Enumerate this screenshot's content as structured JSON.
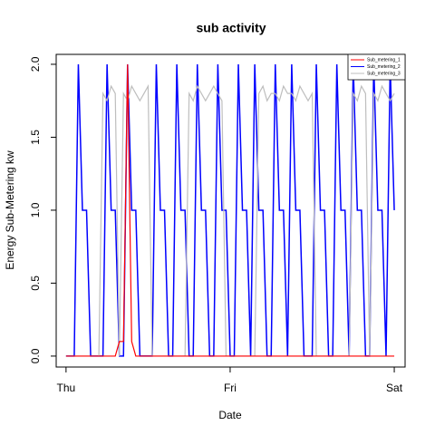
{
  "chart_data": {
    "type": "line",
    "title": "sub activity",
    "xlabel": "Date",
    "ylabel": "Energy Sub-Metering kw",
    "x": [
      0,
      0.025,
      0.05,
      0.075,
      0.1,
      0.125,
      0.15,
      0.175,
      0.2,
      0.225,
      0.25,
      0.275,
      0.3,
      0.325,
      0.35,
      0.375,
      0.4,
      0.425,
      0.45,
      0.475,
      0.5,
      0.525,
      0.55,
      0.575,
      0.6,
      0.625,
      0.65,
      0.675,
      0.7,
      0.725,
      0.75,
      0.775,
      0.8,
      0.825,
      0.85,
      0.875,
      0.9,
      0.925,
      0.95,
      0.975,
      1,
      1.025,
      1.05,
      1.075,
      1.1,
      1.125,
      1.15,
      1.175,
      1.2,
      1.225,
      1.25,
      1.275,
      1.3,
      1.325,
      1.35,
      1.375,
      1.4,
      1.425,
      1.45,
      1.475,
      1.5,
      1.525,
      1.55,
      1.575,
      1.6,
      1.625,
      1.65,
      1.675,
      1.7,
      1.725,
      1.75,
      1.775,
      1.8,
      1.825,
      1.85,
      1.875,
      1.9,
      1.925,
      1.95,
      1.975,
      2
    ],
    "series": [
      {
        "name": "Sub_metering_1",
        "color": "#ff0000",
        "values": [
          0,
          0,
          0,
          0,
          0,
          0,
          0,
          0,
          0,
          0,
          0,
          0,
          0,
          0.1,
          0.1,
          2,
          0.1,
          0,
          0,
          0,
          0,
          0,
          0,
          0,
          0,
          0,
          0,
          0,
          0,
          0,
          0,
          0,
          0,
          0,
          0,
          0,
          0,
          0,
          0,
          0,
          0,
          0,
          0,
          0,
          0,
          0,
          0,
          0,
          0,
          0,
          0,
          0,
          0,
          0,
          0,
          0,
          0,
          0,
          0,
          0,
          0,
          0,
          0,
          0,
          0,
          0,
          0,
          0,
          0,
          0,
          0,
          0,
          0,
          0,
          0,
          0,
          0,
          0,
          0,
          0,
          0
        ]
      },
      {
        "name": "Sub_metering_2",
        "color": "#0000ff",
        "values": [
          0,
          0,
          0,
          2,
          1,
          1,
          0,
          0,
          0,
          0,
          2,
          1,
          1,
          0,
          0,
          2,
          1,
          1,
          0,
          0,
          0,
          0,
          2,
          1,
          1,
          0,
          0,
          2,
          1,
          1,
          0,
          0,
          2,
          1,
          1,
          0,
          0,
          2,
          1,
          1,
          0,
          0,
          2,
          1,
          1,
          0,
          2,
          1,
          1,
          0,
          0,
          2,
          1,
          1,
          0,
          2,
          1,
          1,
          0,
          0,
          0,
          2,
          1,
          1,
          0,
          0,
          2,
          1,
          1,
          0,
          2,
          1,
          1,
          0,
          0,
          2,
          1,
          1,
          0,
          2,
          1
        ]
      },
      {
        "name": "Sub_metering_3",
        "color": "#bebebe",
        "values": [
          0,
          0,
          0,
          0,
          0,
          0,
          0,
          0,
          0,
          1.8,
          1.75,
          1.85,
          1.8,
          0,
          1.8,
          1.75,
          1.85,
          1.8,
          1.75,
          1.8,
          1.85,
          0,
          0,
          0,
          0,
          0,
          0,
          0,
          0,
          0,
          1.8,
          1.75,
          1.85,
          1.8,
          1.75,
          1.8,
          1.85,
          1.8,
          1.75,
          0,
          0,
          0,
          0,
          0,
          0,
          0,
          0,
          1.8,
          1.85,
          1.75,
          1.8,
          1.8,
          1.75,
          1.85,
          1.8,
          1.8,
          1.75,
          1.85,
          1.8,
          1.75,
          1.8,
          0,
          0,
          0,
          0,
          0,
          0,
          0,
          0,
          0,
          1.8,
          1.75,
          1.85,
          1.8,
          0,
          1.8,
          1.75,
          1.85,
          1.8,
          1.75,
          1.8
        ]
      }
    ],
    "xlim": [
      -0.06,
      2.066
    ],
    "xticks": [
      {
        "value": 0,
        "label": "Thu"
      },
      {
        "value": 1,
        "label": "Fri"
      },
      {
        "value": 2,
        "label": "Sat"
      }
    ],
    "ylim": [
      -0.075,
      2.068
    ],
    "yticks": [
      {
        "value": 0,
        "label": "0.0"
      },
      {
        "value": 0.5,
        "label": "0.5"
      },
      {
        "value": 1,
        "label": "1.0"
      },
      {
        "value": 1.5,
        "label": "1.5"
      },
      {
        "value": 2,
        "label": "2.0"
      }
    ],
    "legend": "top-right"
  }
}
